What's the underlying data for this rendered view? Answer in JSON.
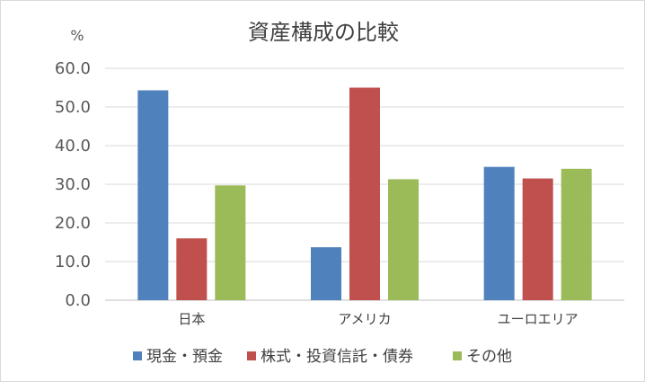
{
  "chart_data": {
    "type": "bar",
    "title": "資産構成の比較",
    "unit_label": "%",
    "categories": [
      "日本",
      "アメリカ",
      "ユーロエリア"
    ],
    "series": [
      {
        "name": "現金・預金",
        "color": "#4F81BD",
        "values": [
          54.3,
          13.7,
          34.5
        ]
      },
      {
        "name": "株式・投資信託・債券",
        "color": "#C0504D",
        "values": [
          16.0,
          55.0,
          31.5
        ]
      },
      {
        "name": "その他",
        "color": "#9BBB59",
        "values": [
          29.7,
          31.3,
          34.0
        ]
      }
    ],
    "ylim": [
      0,
      60
    ],
    "yticks": [
      "0.0",
      "10.0",
      "20.0",
      "30.0",
      "40.0",
      "50.0",
      "60.0"
    ],
    "grid": true,
    "legend_position": "bottom"
  }
}
